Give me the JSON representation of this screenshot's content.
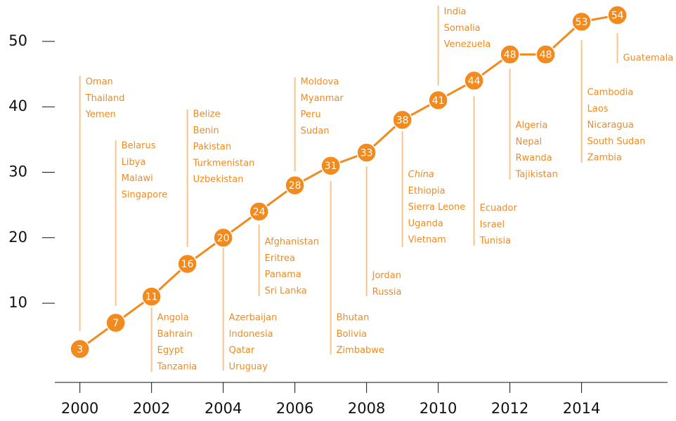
{
  "chart_data": {
    "type": "line",
    "x": [
      2000,
      2001,
      2002,
      2003,
      2004,
      2005,
      2006,
      2007,
      2008,
      2009,
      2010,
      2011,
      2012,
      2013,
      2014,
      2015
    ],
    "values": [
      3,
      7,
      11,
      16,
      20,
      24,
      28,
      31,
      33,
      38,
      41,
      44,
      48,
      48,
      53,
      54
    ],
    "color": "#f28a1d",
    "xlim": [
      1999.3,
      2016.4
    ],
    "xticks": [
      2000,
      2002,
      2004,
      2006,
      2008,
      2010,
      2012,
      2014
    ],
    "ylim": [
      -2,
      56
    ],
    "yticks": [
      10,
      20,
      30,
      40,
      50
    ],
    "annotations": [
      {
        "x": 2000,
        "labels": [
          "Oman",
          "Thailand",
          "Yemen"
        ]
      },
      {
        "x": 2001,
        "labels": [
          "Belarus",
          "Libya",
          "Malawi",
          "Singapore"
        ]
      },
      {
        "x": 2002,
        "labels": [
          "Angola",
          "Bahrain",
          "Egypt",
          "Tanzania"
        ]
      },
      {
        "x": 2003,
        "labels": [
          "Belize",
          "Benin",
          "Pakistan",
          "Turkmenistan",
          "Uzbekistan"
        ]
      },
      {
        "x": 2004,
        "labels": [
          "Azerbaijan",
          "Indonesia",
          "Qatar",
          "Uruguay"
        ]
      },
      {
        "x": 2005,
        "labels": [
          "Afghanistan",
          "Eritrea",
          "Panama",
          "Sri Lanka"
        ]
      },
      {
        "x": 2006,
        "labels": [
          "Moldova",
          "Myanmar",
          "Peru",
          "Sudan"
        ]
      },
      {
        "x": 2007,
        "labels": [
          "Bhutan",
          "Bolivia",
          "Zimbabwe"
        ]
      },
      {
        "x": 2008,
        "labels": [
          "Jordan",
          "Russia"
        ]
      },
      {
        "x": 2009,
        "labels": [
          "China",
          "Ethiopia",
          "Sierra Leone",
          "Uganda",
          "Vietnam"
        ]
      },
      {
        "x": 2010,
        "labels": [
          "India",
          "Somalia",
          "Venezuela"
        ]
      },
      {
        "x": 2011,
        "labels": [
          "Ecuador",
          "Israel",
          "Tunisia"
        ]
      },
      {
        "x": 2012,
        "labels": [
          "Algeria",
          "Nepal",
          "Rwanda",
          "Tajikistan"
        ]
      },
      {
        "x": 2014,
        "labels": [
          "Cambodia",
          "Laos",
          "Nicaragua",
          "South Sudan",
          "Zambia"
        ]
      },
      {
        "x": 2015,
        "labels": [
          "Guatemala"
        ]
      }
    ]
  }
}
